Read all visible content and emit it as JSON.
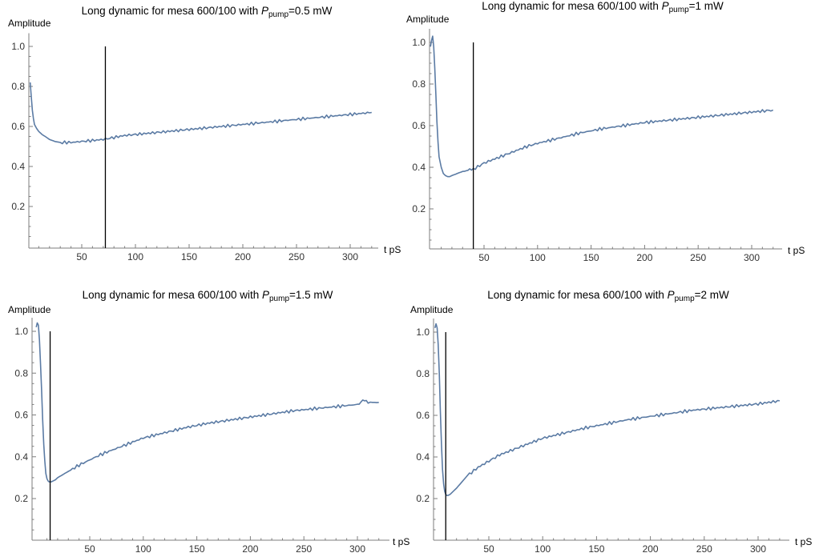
{
  "chart_data": [
    {
      "type": "line",
      "title_parts": {
        "prefix": "Long dynamic for mesa 600/100 with ",
        "var": "P",
        "sub": "pump",
        "suffix": "=0.5 mW"
      },
      "xlabel": "t pS",
      "ylabel": "Amplitude",
      "xticks": [
        50,
        100,
        150,
        200,
        250,
        300
      ],
      "yticks": [
        0.2,
        0.4,
        0.6,
        0.8,
        1.0
      ],
      "ytick_labels": [
        "0.2",
        "0.4",
        "0.6",
        "0.8",
        "1.0"
      ],
      "marker_x": 72,
      "series": [
        {
          "x": [
            2,
            3,
            4,
            5,
            6,
            8,
            10,
            13,
            16,
            20,
            25,
            30,
            40,
            50,
            60,
            70,
            80,
            90,
            100,
            110,
            120,
            130,
            140,
            150,
            160,
            170,
            180,
            190,
            200,
            210,
            220,
            230,
            240,
            250,
            260,
            270,
            280,
            290,
            300,
            310,
            320
          ],
          "y": [
            0.82,
            0.75,
            0.68,
            0.64,
            0.61,
            0.59,
            0.575,
            0.56,
            0.55,
            0.535,
            0.525,
            0.52,
            0.52,
            0.525,
            0.53,
            0.535,
            0.545,
            0.555,
            0.56,
            0.565,
            0.57,
            0.575,
            0.58,
            0.585,
            0.59,
            0.595,
            0.6,
            0.605,
            0.61,
            0.615,
            0.62,
            0.625,
            0.63,
            0.635,
            0.64,
            0.645,
            0.65,
            0.655,
            0.66,
            0.665,
            0.67
          ]
        }
      ]
    },
    {
      "type": "line",
      "title_parts": {
        "prefix": "Long dynamic for mesa 600/100 with ",
        "var": "P",
        "sub": "pump",
        "suffix": "=1 mW"
      },
      "xlabel": "t pS",
      "ylabel": "Amplitude",
      "xticks": [
        50,
        100,
        150,
        200,
        250,
        300
      ],
      "yticks": [
        0.2,
        0.4,
        0.6,
        0.8,
        1.0
      ],
      "ytick_labels": [
        "0.2",
        "0.4",
        "0.6",
        "0.8",
        "1.0"
      ],
      "marker_x": 40,
      "series": [
        {
          "x": [
            0,
            1,
            2,
            3,
            4,
            5,
            6,
            7,
            8,
            10,
            12,
            14,
            16,
            18,
            20,
            25,
            30,
            35,
            40,
            50,
            60,
            70,
            80,
            90,
            100,
            120,
            140,
            160,
            180,
            200,
            220,
            240,
            260,
            280,
            300,
            320
          ],
          "y": [
            0.98,
            1.01,
            1.03,
            0.98,
            0.88,
            0.75,
            0.62,
            0.52,
            0.45,
            0.4,
            0.37,
            0.36,
            0.355,
            0.355,
            0.36,
            0.37,
            0.38,
            0.385,
            0.39,
            0.42,
            0.44,
            0.46,
            0.48,
            0.5,
            0.515,
            0.54,
            0.565,
            0.585,
            0.6,
            0.615,
            0.625,
            0.635,
            0.645,
            0.655,
            0.665,
            0.675
          ]
        }
      ]
    },
    {
      "type": "line",
      "title_parts": {
        "prefix": "Long dynamic for mesa 600/100 with ",
        "var": "P",
        "sub": "pump",
        "suffix": "=1.5 mW"
      },
      "xlabel": "t pS",
      "ylabel": "Amplitude",
      "xticks": [
        50,
        100,
        150,
        200,
        250,
        300
      ],
      "yticks": [
        0.2,
        0.4,
        0.6,
        0.8,
        1.0
      ],
      "ytick_labels": [
        "0.2",
        "0.4",
        "0.6",
        "0.8",
        "1.0"
      ],
      "marker_x": 13,
      "series": [
        {
          "x": [
            0,
            1,
            2,
            3,
            4,
            5,
            6,
            7,
            8,
            9,
            10,
            11,
            12,
            13,
            14,
            16,
            18,
            20,
            25,
            30,
            40,
            50,
            60,
            70,
            80,
            90,
            100,
            120,
            140,
            160,
            180,
            200,
            220,
            240,
            260,
            280,
            300,
            305,
            310,
            320
          ],
          "y": [
            1.02,
            1.04,
            1.03,
            0.96,
            0.85,
            0.72,
            0.58,
            0.46,
            0.38,
            0.32,
            0.295,
            0.285,
            0.28,
            0.28,
            0.28,
            0.285,
            0.29,
            0.3,
            0.315,
            0.33,
            0.36,
            0.385,
            0.41,
            0.43,
            0.45,
            0.47,
            0.49,
            0.515,
            0.54,
            0.56,
            0.575,
            0.59,
            0.605,
            0.62,
            0.63,
            0.64,
            0.65,
            0.67,
            0.66,
            0.66
          ]
        }
      ]
    },
    {
      "type": "line",
      "title_parts": {
        "prefix": "Long dynamic for mesa 600/100 with ",
        "var": "P",
        "sub": "pump",
        "suffix": "=2 mW"
      },
      "xlabel": "t pS",
      "ylabel": "Amplitude",
      "xticks": [
        50,
        100,
        150,
        200,
        250,
        300
      ],
      "yticks": [
        0.2,
        0.4,
        0.6,
        0.8,
        1.0
      ],
      "ytick_labels": [
        "0.2",
        "0.4",
        "0.6",
        "0.8",
        "1.0"
      ],
      "marker_x": 10,
      "series": [
        {
          "x": [
            0,
            1,
            2,
            3,
            4,
            5,
            6,
            7,
            8,
            9,
            10,
            11,
            12,
            14,
            16,
            18,
            20,
            25,
            30,
            40,
            50,
            60,
            70,
            80,
            90,
            100,
            120,
            140,
            160,
            180,
            200,
            220,
            240,
            260,
            280,
            300,
            320
          ],
          "y": [
            1.02,
            1.04,
            1.02,
            0.94,
            0.8,
            0.62,
            0.46,
            0.34,
            0.27,
            0.235,
            0.22,
            0.215,
            0.215,
            0.22,
            0.23,
            0.24,
            0.25,
            0.28,
            0.31,
            0.35,
            0.38,
            0.41,
            0.43,
            0.45,
            0.47,
            0.49,
            0.515,
            0.54,
            0.56,
            0.58,
            0.595,
            0.61,
            0.625,
            0.635,
            0.645,
            0.655,
            0.67
          ]
        }
      ]
    }
  ]
}
